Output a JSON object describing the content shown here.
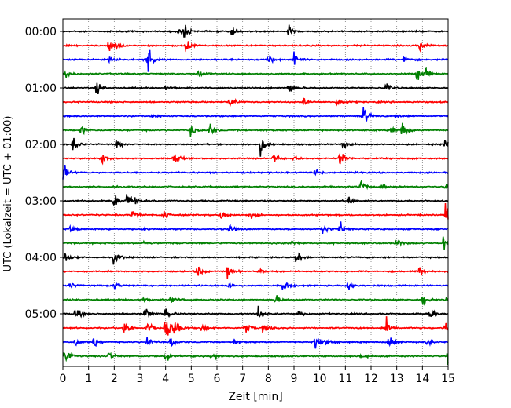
{
  "chart_data": {
    "type": "line",
    "title": "",
    "xlabel": "Zeit  [min]",
    "ylabel": "UTC (Lokalzeit = UTC + 01:00)",
    "xlim": [
      0,
      15
    ],
    "x_ticks": [
      "0",
      "1",
      "2",
      "3",
      "4",
      "5",
      "6",
      "7",
      "8",
      "9",
      "10",
      "11",
      "12",
      "13",
      "14",
      "15"
    ],
    "y_ticks": [
      "00:00",
      "01:00",
      "02:00",
      "03:00",
      "04:00",
      "05:00"
    ],
    "grid": "vertical dotted",
    "trace_interval_minutes": 15,
    "colors": [
      "#000000",
      "#ff0000",
      "#0000ff",
      "#008000"
    ],
    "traces": [
      {
        "start": "00:00",
        "events": [
          [
            4.7,
            1.0
          ],
          [
            6.6,
            0.7
          ],
          [
            8.8,
            0.7
          ],
          [
            4.5,
            0.5
          ]
        ]
      },
      {
        "start": "00:15",
        "events": [
          [
            1.8,
            0.9
          ],
          [
            4.8,
            1.2
          ],
          [
            13.9,
            0.8
          ],
          [
            2.1,
            0.3
          ]
        ]
      },
      {
        "start": "00:30",
        "events": [
          [
            1.8,
            0.5
          ],
          [
            3.3,
            1.8
          ],
          [
            3.2,
            0.6
          ],
          [
            8.0,
            0.6
          ],
          [
            9.0,
            1.0
          ],
          [
            13.3,
            0.6
          ]
        ]
      },
      {
        "start": "00:45",
        "events": [
          [
            0.1,
            0.6
          ],
          [
            5.3,
            0.5
          ],
          [
            13.8,
            0.9
          ],
          [
            14.1,
            0.6
          ]
        ]
      },
      {
        "start": "01:00",
        "events": [
          [
            1.3,
            1.0
          ],
          [
            4.0,
            0.3
          ],
          [
            8.8,
            0.8
          ],
          [
            12.6,
            0.6
          ]
        ]
      },
      {
        "start": "01:15",
        "events": [
          [
            6.5,
            0.8
          ],
          [
            9.4,
            0.4
          ],
          [
            10.7,
            0.6
          ]
        ]
      },
      {
        "start": "01:30",
        "events": [
          [
            3.5,
            0.3
          ],
          [
            11.7,
            1.2
          ],
          [
            13.0,
            0.3
          ]
        ]
      },
      {
        "start": "01:45",
        "events": [
          [
            0.7,
            0.8
          ],
          [
            5.0,
            0.8
          ],
          [
            5.7,
            1.0
          ],
          [
            13.2,
            1.0
          ],
          [
            12.8,
            0.5
          ]
        ]
      },
      {
        "start": "02:00",
        "events": [
          [
            0.4,
            1.2
          ],
          [
            2.1,
            0.6
          ],
          [
            7.7,
            1.3
          ],
          [
            10.9,
            0.6
          ],
          [
            14.9,
            1.0
          ]
        ]
      },
      {
        "start": "02:15",
        "events": [
          [
            1.5,
            0.8
          ],
          [
            4.3,
            1.0
          ],
          [
            8.2,
            0.8
          ],
          [
            9.0,
            0.3
          ],
          [
            10.8,
            1.0
          ]
        ]
      },
      {
        "start": "02:30",
        "events": [
          [
            0.0,
            1.5
          ],
          [
            9.8,
            0.8
          ]
        ]
      },
      {
        "start": "02:45",
        "events": [
          [
            11.6,
            0.9
          ],
          [
            12.4,
            0.3
          ],
          [
            14.9,
            0.8
          ]
        ]
      },
      {
        "start": "03:00",
        "events": [
          [
            2.0,
            1.0
          ],
          [
            2.5,
            0.9
          ],
          [
            2.7,
            0.7
          ],
          [
            11.1,
            0.6
          ]
        ]
      },
      {
        "start": "03:15",
        "events": [
          [
            2.7,
            0.7
          ],
          [
            3.9,
            0.9
          ],
          [
            6.2,
            1.0
          ],
          [
            7.3,
            0.4
          ],
          [
            14.9,
            1.9
          ]
        ]
      },
      {
        "start": "03:30",
        "events": [
          [
            0.3,
            0.4
          ],
          [
            3.1,
            0.4
          ],
          [
            6.5,
            0.5
          ],
          [
            10.1,
            1.0
          ],
          [
            10.8,
            0.9
          ]
        ]
      },
      {
        "start": "03:45",
        "events": [
          [
            3.1,
            0.3
          ],
          [
            8.9,
            0.4
          ],
          [
            13.0,
            0.5
          ],
          [
            14.8,
            1.2
          ]
        ]
      },
      {
        "start": "04:00",
        "events": [
          [
            0.1,
            0.8
          ],
          [
            2.0,
            1.1
          ],
          [
            9.1,
            0.8
          ]
        ]
      },
      {
        "start": "04:15",
        "events": [
          [
            5.2,
            1.0
          ],
          [
            6.4,
            0.9
          ],
          [
            13.9,
            0.8
          ],
          [
            7.7,
            0.3
          ]
        ]
      },
      {
        "start": "04:30",
        "events": [
          [
            0.3,
            0.4
          ],
          [
            2.0,
            0.5
          ],
          [
            6.4,
            0.5
          ],
          [
            8.6,
            0.9
          ],
          [
            11.1,
            0.7
          ]
        ]
      },
      {
        "start": "04:45",
        "events": [
          [
            3.1,
            0.4
          ],
          [
            4.2,
            0.5
          ],
          [
            8.3,
            0.6
          ],
          [
            14.0,
            0.9
          ],
          [
            14.9,
            0.5
          ]
        ]
      },
      {
        "start": "05:00",
        "events": [
          [
            0.5,
            0.8
          ],
          [
            3.2,
            1.0
          ],
          [
            4.0,
            0.7
          ],
          [
            7.6,
            0.9
          ],
          [
            9.2,
            0.6
          ],
          [
            14.3,
            0.8
          ]
        ]
      },
      {
        "start": "05:15",
        "events": [
          [
            2.4,
            1.1
          ],
          [
            3.3,
            0.7
          ],
          [
            4.0,
            1.8
          ],
          [
            4.3,
            1.9
          ],
          [
            5.4,
            0.5
          ],
          [
            7.1,
            1.1
          ],
          [
            7.8,
            0.6
          ],
          [
            12.6,
            1.2
          ],
          [
            14.9,
            1.0
          ]
        ]
      },
      {
        "start": "05:30",
        "events": [
          [
            0.5,
            0.6
          ],
          [
            1.2,
            1.0
          ],
          [
            3.3,
            0.8
          ],
          [
            4.2,
            0.9
          ],
          [
            6.7,
            0.4
          ],
          [
            9.8,
            1.2
          ],
          [
            10.3,
            0.7
          ],
          [
            12.7,
            1.2
          ],
          [
            14.2,
            0.5
          ]
        ]
      },
      {
        "start": "05:45",
        "events": [
          [
            0.1,
            1.2
          ],
          [
            1.8,
            0.6
          ],
          [
            4.0,
            0.9
          ],
          [
            5.8,
            0.8
          ],
          [
            11.6,
            0.4
          ],
          [
            15.0,
            1.4
          ]
        ]
      }
    ]
  }
}
